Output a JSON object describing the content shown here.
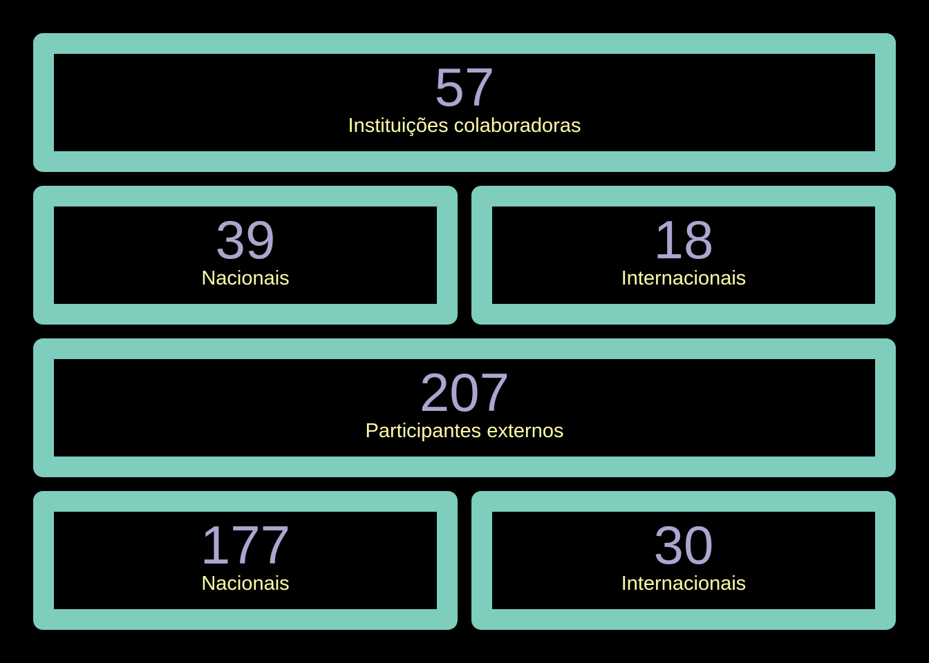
{
  "colors": {
    "background": "#000000",
    "card_border": "#7ecdbd",
    "number": "#aea5cf",
    "label": "#fdfba6"
  },
  "institutions": {
    "total": {
      "value": "57",
      "label": "Instituições colaboradoras"
    },
    "national": {
      "value": "39",
      "label": "Nacionais"
    },
    "international": {
      "value": "18",
      "label": "Internacionais"
    }
  },
  "participants": {
    "total": {
      "value": "207",
      "label": "Participantes externos"
    },
    "national": {
      "value": "177",
      "label": "Nacionais"
    },
    "international": {
      "value": "30",
      "label": "Internacionais"
    }
  }
}
